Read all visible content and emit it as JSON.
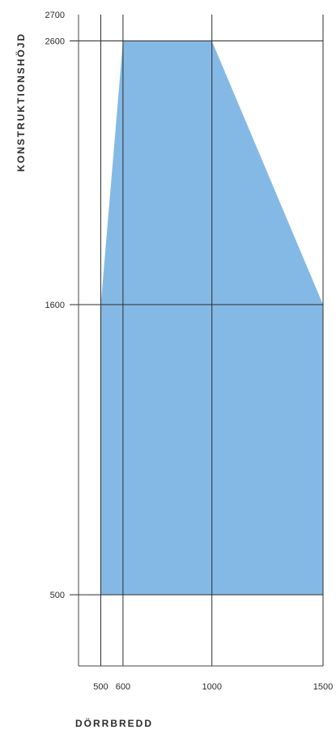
{
  "chart_data": {
    "type": "area",
    "xlabel": "DÖRRBREDD",
    "ylabel": "KONSTRUKTIONSHÖJD",
    "xlim": [
      400,
      1500
    ],
    "ylim": [
      230,
      2700
    ],
    "x_ticks": [
      500,
      600,
      1000,
      1500
    ],
    "y_ticks": [
      500,
      1600,
      2600,
      2700
    ],
    "grid": true,
    "fill_color": "#85b9e5",
    "series": [
      {
        "polygon": [
          {
            "x": 500,
            "y": 500
          },
          {
            "x": 500,
            "y": 1600
          },
          {
            "x": 600,
            "y": 2600
          },
          {
            "x": 1000,
            "y": 2600
          },
          {
            "x": 1500,
            "y": 1600
          },
          {
            "x": 1500,
            "y": 500
          }
        ]
      }
    ]
  }
}
